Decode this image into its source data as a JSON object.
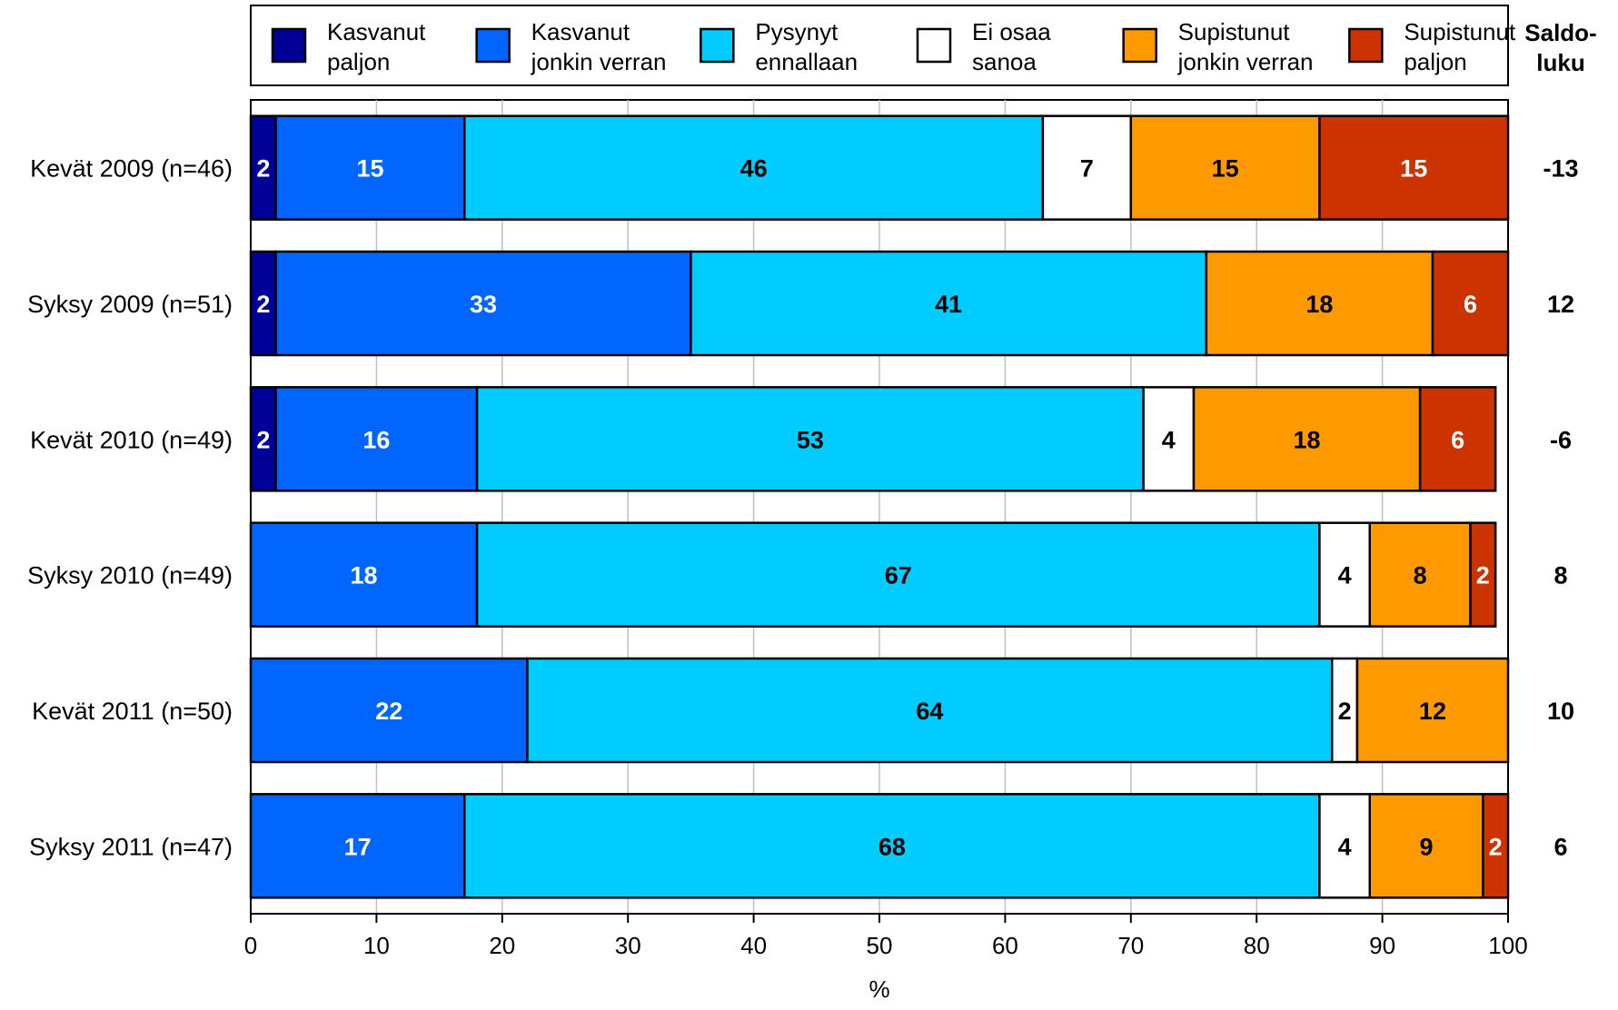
{
  "chart_data": {
    "type": "bar",
    "orientation": "horizontal",
    "stacked": true,
    "xlabel": "%",
    "xlim": [
      0,
      100
    ],
    "xticks": [
      0,
      10,
      20,
      30,
      40,
      50,
      60,
      70,
      80,
      90,
      100
    ],
    "grid": true,
    "legend_position": "top",
    "saldo_header": "Saldo-\nluku",
    "categories": [
      "Kevät 2009 (n=46)",
      "Syksy 2009 (n=51)",
      "Kevät 2010 (n=49)",
      "Syksy 2010 (n=49)",
      "Kevät 2011 (n=50)",
      "Syksy 2011 (n=47)"
    ],
    "series": [
      {
        "name": "Kasvanut\npaljon",
        "color": "#000099",
        "label_color": "#ffffff",
        "values": [
          2,
          2,
          2,
          0,
          0,
          0
        ]
      },
      {
        "name": "Kasvanut\njonkin verran",
        "color": "#0066ff",
        "label_color": "#ffffff",
        "values": [
          15,
          33,
          16,
          18,
          22,
          17
        ]
      },
      {
        "name": "Pysynyt\nennallaan",
        "color": "#00ccff",
        "label_color": "#000000",
        "values": [
          46,
          41,
          53,
          67,
          64,
          68
        ]
      },
      {
        "name": "Ei osaa\nsanoa",
        "color": "#ffffff",
        "label_color": "#000000",
        "values": [
          7,
          0,
          4,
          4,
          2,
          4
        ]
      },
      {
        "name": "Supistunut\njonkin verran",
        "color": "#ff9900",
        "label_color": "#000000",
        "values": [
          15,
          18,
          18,
          8,
          12,
          9
        ]
      },
      {
        "name": "Supistunut\npaljon",
        "color": "#cc3300",
        "label_color": "#ffffff",
        "values": [
          15,
          6,
          6,
          2,
          0,
          2
        ]
      }
    ],
    "saldo": [
      "-13",
      "12",
      "-6",
      "8",
      "10",
      "6"
    ]
  }
}
